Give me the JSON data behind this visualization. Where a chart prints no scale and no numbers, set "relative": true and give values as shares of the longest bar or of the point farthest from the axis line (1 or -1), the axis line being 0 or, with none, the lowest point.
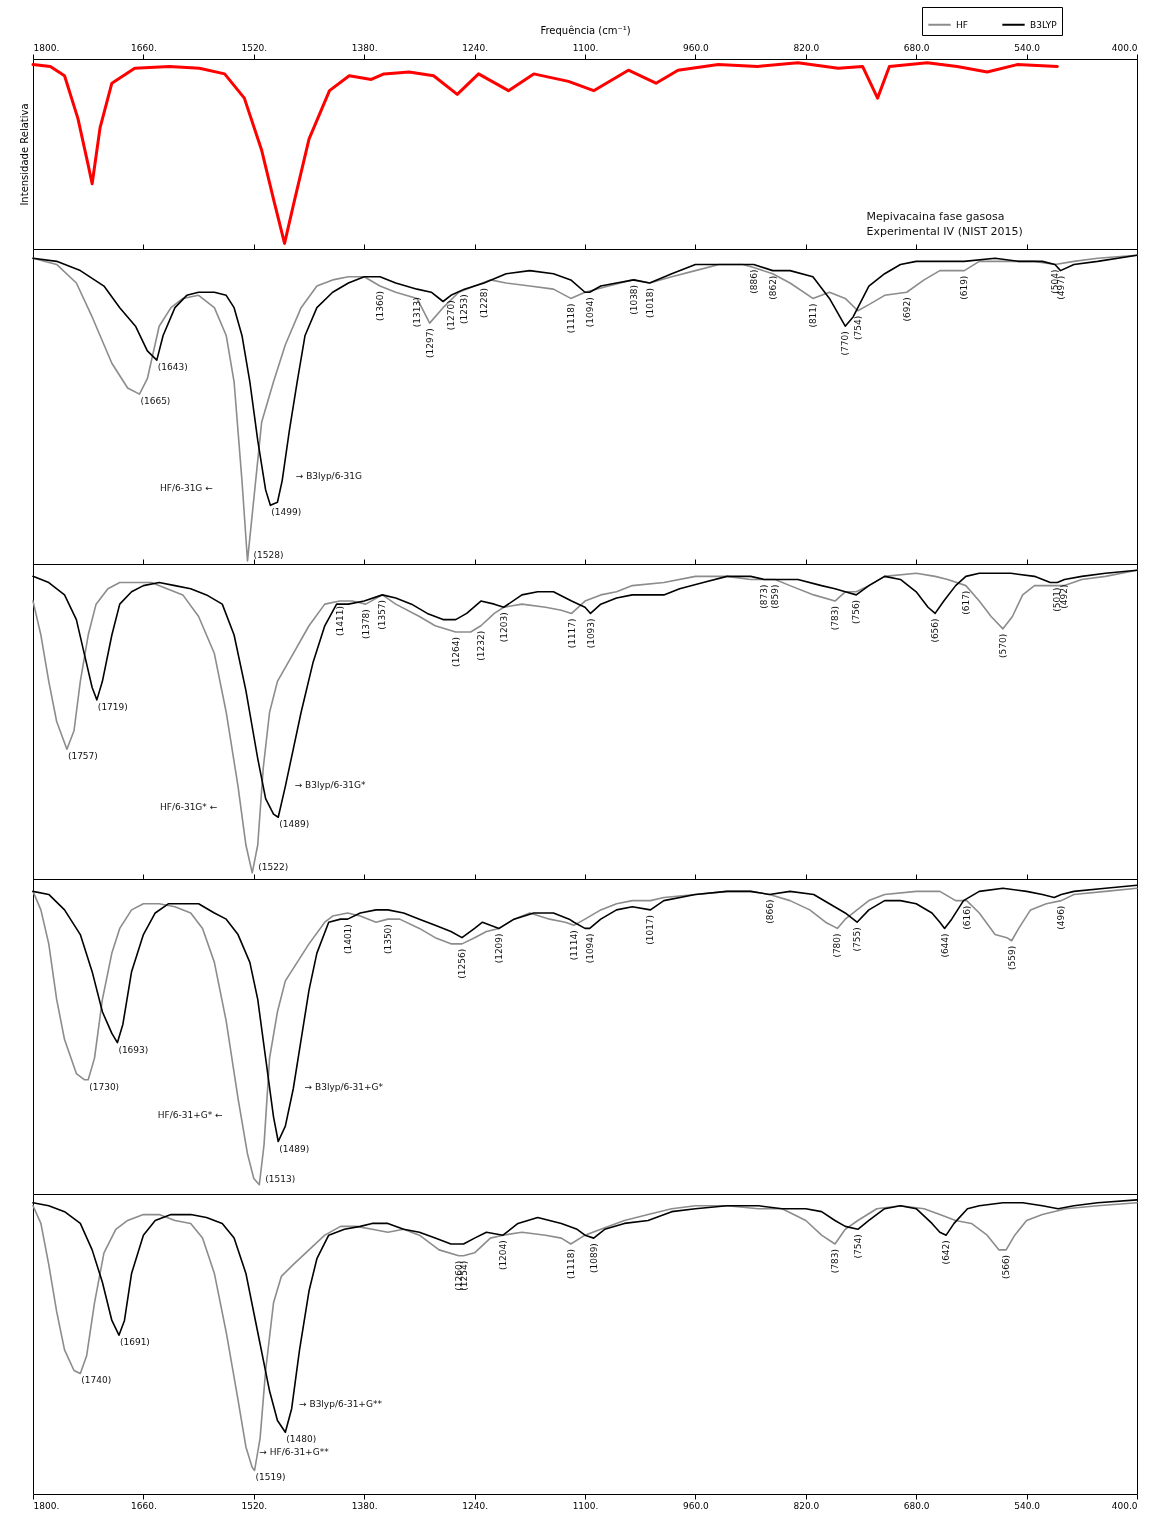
{
  "chart_data": [
    {
      "type": "line",
      "xlabel": "Frequência (cm⁻¹)",
      "ylabel": "Intensidade Relativa",
      "xlim": [
        1800,
        400
      ],
      "xticks": [
        {
          "value": 1800,
          "label": "1800."
        },
        {
          "value": 1660,
          "label": "1660."
        },
        {
          "value": 1520,
          "label": "1520."
        },
        {
          "value": 1380,
          "label": "1380."
        },
        {
          "value": 1240,
          "label": "1240."
        },
        {
          "value": 1100,
          "label": "1100."
        },
        {
          "value": 960,
          "label": "960.0"
        },
        {
          "value": 820,
          "label": "820.0"
        },
        {
          "value": 680,
          "label": "680.0"
        },
        {
          "value": 540,
          "label": "540.0"
        },
        {
          "value": 400,
          "label": "400.0"
        }
      ],
      "relative": true,
      "tick_labels": "x",
      "series": [
        {
          "color": "#ff0000",
          "x": [
            1800,
            1778,
            1760,
            1743,
            1730,
            1725,
            1715,
            1700,
            1671,
            1627,
            1589,
            1557,
            1532,
            1510,
            1494,
            1481,
            1469,
            1450,
            1424,
            1399,
            1371,
            1355,
            1323,
            1292,
            1262,
            1235,
            1197,
            1165,
            1121,
            1089,
            1045,
            1010,
            982,
            931,
            881,
            830,
            779,
            748,
            729,
            714,
            666,
            628,
            590,
            552,
            501
          ],
          "values": [
            0.99,
            0.98,
            0.93,
            0.7,
            0.45,
            0.35,
            0.65,
            0.89,
            0.97,
            0.98,
            0.97,
            0.94,
            0.81,
            0.53,
            0.25,
            0.03,
            0.25,
            0.59,
            0.85,
            0.93,
            0.91,
            0.94,
            0.95,
            0.93,
            0.83,
            0.94,
            0.85,
            0.94,
            0.9,
            0.85,
            0.96,
            0.89,
            0.96,
            0.99,
            0.98,
            1.0,
            0.97,
            0.98,
            0.81,
            0.98,
            1.0,
            0.98,
            0.95,
            0.99,
            0.98
          ]
        }
      ],
      "annotations": [
        "Mepivacaina fase gasosa\nExperimental IV (NIST 2015)"
      ]
    },
    {
      "type": "line",
      "xlim": [
        1800,
        400
      ],
      "xticks": [
        1800,
        1660,
        1520,
        1380,
        1240,
        1100,
        960,
        820,
        680,
        540,
        400
      ],
      "relative": true,
      "tick_labels": false,
      "legend": "top right",
      "series": [
        {
          "name": "HF",
          "color": "#8c8c8c",
          "x": [
            1800,
            1770,
            1745,
            1725,
            1700,
            1680,
            1665,
            1655,
            1640,
            1625,
            1610,
            1590,
            1570,
            1555,
            1545,
            1535,
            1528,
            1520,
            1510,
            1495,
            1480,
            1460,
            1440,
            1420,
            1400,
            1380,
            1360,
            1340,
            1313,
            1297,
            1280,
            1260,
            1240,
            1220,
            1200,
            1170,
            1140,
            1118,
            1100,
            1070,
            1040,
            1018,
            990,
            960,
            930,
            900,
            886,
            862,
            840,
            811,
            790,
            770,
            754,
            740,
            720,
            692,
            670,
            650,
            619,
            600,
            560,
            530,
            504,
            480,
            450,
            400
          ],
          "values": [
            0.99,
            0.97,
            0.91,
            0.8,
            0.65,
            0.57,
            0.55,
            0.6,
            0.77,
            0.83,
            0.86,
            0.87,
            0.83,
            0.74,
            0.59,
            0.27,
            0.01,
            0.21,
            0.46,
            0.59,
            0.71,
            0.83,
            0.9,
            0.92,
            0.93,
            0.93,
            0.9,
            0.88,
            0.86,
            0.78,
            0.83,
            0.88,
            0.9,
            0.92,
            0.91,
            0.9,
            0.89,
            0.86,
            0.88,
            0.9,
            0.92,
            0.91,
            0.93,
            0.95,
            0.97,
            0.97,
            0.96,
            0.94,
            0.91,
            0.86,
            0.88,
            0.86,
            0.82,
            0.84,
            0.87,
            0.88,
            0.92,
            0.95,
            0.95,
            0.98,
            0.98,
            0.98,
            0.97,
            0.98,
            0.99,
            1.0
          ]
        },
        {
          "name": "B3LYP",
          "color": "#000000",
          "x": [
            1800,
            1770,
            1740,
            1710,
            1690,
            1670,
            1655,
            1643,
            1635,
            1620,
            1605,
            1590,
            1570,
            1555,
            1545,
            1535,
            1525,
            1515,
            1505,
            1499,
            1490,
            1484,
            1475,
            1465,
            1455,
            1440,
            1420,
            1400,
            1380,
            1360,
            1340,
            1313,
            1295,
            1280,
            1270,
            1253,
            1228,
            1200,
            1170,
            1140,
            1118,
            1100,
            1094,
            1080,
            1060,
            1038,
            1018,
            990,
            960,
            920,
            886,
            862,
            840,
            811,
            790,
            770,
            760,
            740,
            720,
            700,
            680,
            650,
            619,
            580,
            550,
            520,
            504,
            497,
            480,
            450,
            400
          ],
          "values": [
            0.99,
            0.98,
            0.95,
            0.9,
            0.83,
            0.77,
            0.69,
            0.66,
            0.74,
            0.83,
            0.87,
            0.88,
            0.88,
            0.87,
            0.83,
            0.74,
            0.59,
            0.4,
            0.24,
            0.19,
            0.2,
            0.27,
            0.43,
            0.59,
            0.74,
            0.83,
            0.88,
            0.91,
            0.93,
            0.93,
            0.91,
            0.89,
            0.88,
            0.85,
            0.87,
            0.89,
            0.91,
            0.94,
            0.95,
            0.94,
            0.92,
            0.88,
            0.88,
            0.9,
            0.91,
            0.92,
            0.91,
            0.94,
            0.97,
            0.97,
            0.97,
            0.95,
            0.95,
            0.93,
            0.86,
            0.77,
            0.8,
            0.9,
            0.94,
            0.97,
            0.98,
            0.98,
            0.98,
            0.99,
            0.98,
            0.98,
            0.97,
            0.95,
            0.97,
            0.98,
            1.0
          ]
        }
      ],
      "annotations": [
        {
          "text": "(1643)",
          "x": 1643,
          "y": 0.66
        },
        {
          "text": "(1665)",
          "x": 1665,
          "y": 0.55
        },
        {
          "text": "(1499)",
          "x": 1499,
          "y": 0.19
        },
        {
          "text": "(1528)",
          "x": 1528,
          "y": 0.01
        },
        {
          "text": "(1360)",
          "x": 1360,
          "y": 0.9
        },
        {
          "text": "(1313)",
          "x": 1313,
          "y": 0.88
        },
        {
          "text": "(1297)",
          "x": 1297,
          "y": 0.78
        },
        {
          "text": "(1270)",
          "x": 1270,
          "y": 0.87
        },
        {
          "text": "(1253)",
          "x": 1253,
          "y": 0.89
        },
        {
          "text": "(1228)",
          "x": 1228,
          "y": 0.91
        },
        {
          "text": "(1118)",
          "x": 1118,
          "y": 0.86
        },
        {
          "text": "(1094)",
          "x": 1094,
          "y": 0.88
        },
        {
          "text": "(1038)",
          "x": 1038,
          "y": 0.92
        },
        {
          "text": "(1018)",
          "x": 1018,
          "y": 0.91
        },
        {
          "text": "(886)",
          "x": 886,
          "y": 0.97
        },
        {
          "text": "(862)",
          "x": 862,
          "y": 0.95
        },
        {
          "text": "(811)",
          "x": 811,
          "y": 0.86
        },
        {
          "text": "(770)",
          "x": 770,
          "y": 0.77
        },
        {
          "text": "(754)",
          "x": 754,
          "y": 0.82
        },
        {
          "text": "(692)",
          "x": 692,
          "y": 0.88
        },
        {
          "text": "(619)",
          "x": 619,
          "y": 0.95
        },
        {
          "text": "(504)",
          "x": 504,
          "y": 0.97
        },
        {
          "text": "(497)",
          "x": 497,
          "y": 0.95
        },
        "HF/6-31G ←",
        "→ B3lyp/6-31G"
      ]
    },
    {
      "type": "line",
      "xlim": [
        1800,
        400
      ],
      "xticks": [
        1800,
        1660,
        1520,
        1380,
        1240,
        1100,
        960,
        820,
        680,
        540,
        400
      ],
      "relative": true,
      "tick_labels": false,
      "series": [
        {
          "color": "#8c8c8c",
          "x": [
            1800,
            1790,
            1780,
            1770,
            1757,
            1748,
            1740,
            1730,
            1720,
            1705,
            1690,
            1670,
            1650,
            1630,
            1610,
            1590,
            1570,
            1555,
            1540,
            1530,
            1522,
            1515,
            1508,
            1500,
            1490,
            1470,
            1450,
            1430,
            1411,
            1395,
            1378,
            1357,
            1340,
            1310,
            1290,
            1264,
            1245,
            1232,
            1215,
            1203,
            1180,
            1150,
            1130,
            1117,
            1100,
            1080,
            1060,
            1040,
            1000,
            960,
            920,
            890,
            873,
            859,
            840,
            810,
            783,
            770,
            756,
            740,
            720,
            680,
            656,
            640,
            617,
            600,
            585,
            570,
            558,
            545,
            530,
            510,
            492,
            470,
            440,
            400
          ],
          "values": [
            0.9,
            0.79,
            0.64,
            0.51,
            0.42,
            0.48,
            0.64,
            0.79,
            0.89,
            0.94,
            0.96,
            0.96,
            0.96,
            0.94,
            0.92,
            0.85,
            0.73,
            0.54,
            0.3,
            0.11,
            0.02,
            0.11,
            0.36,
            0.54,
            0.64,
            0.73,
            0.82,
            0.89,
            0.9,
            0.9,
            0.89,
            0.92,
            0.89,
            0.85,
            0.82,
            0.8,
            0.8,
            0.82,
            0.86,
            0.88,
            0.89,
            0.88,
            0.87,
            0.86,
            0.9,
            0.92,
            0.93,
            0.95,
            0.96,
            0.98,
            0.98,
            0.97,
            0.97,
            0.97,
            0.95,
            0.92,
            0.9,
            0.93,
            0.93,
            0.95,
            0.98,
            0.99,
            0.98,
            0.97,
            0.95,
            0.9,
            0.85,
            0.81,
            0.85,
            0.92,
            0.95,
            0.95,
            0.95,
            0.97,
            0.98,
            1.0
          ]
        },
        {
          "color": "#000000",
          "x": [
            1800,
            1780,
            1760,
            1745,
            1735,
            1725,
            1719,
            1712,
            1700,
            1690,
            1675,
            1660,
            1640,
            1620,
            1600,
            1580,
            1560,
            1545,
            1530,
            1515,
            1505,
            1495,
            1489,
            1480,
            1470,
            1460,
            1445,
            1430,
            1415,
            1400,
            1380,
            1357,
            1340,
            1320,
            1300,
            1280,
            1264,
            1250,
            1232,
            1215,
            1203,
            1180,
            1160,
            1140,
            1117,
            1100,
            1093,
            1080,
            1060,
            1040,
            1000,
            980,
            950,
            920,
            890,
            873,
            859,
            830,
            800,
            783,
            770,
            756,
            740,
            720,
            700,
            680,
            665,
            656,
            645,
            630,
            617,
            600,
            560,
            530,
            510,
            501,
            492,
            470,
            440,
            400
          ],
          "values": [
            0.98,
            0.96,
            0.92,
            0.84,
            0.73,
            0.62,
            0.58,
            0.64,
            0.79,
            0.89,
            0.93,
            0.95,
            0.96,
            0.95,
            0.94,
            0.92,
            0.89,
            0.79,
            0.61,
            0.39,
            0.26,
            0.21,
            0.2,
            0.3,
            0.42,
            0.54,
            0.7,
            0.82,
            0.89,
            0.89,
            0.9,
            0.92,
            0.91,
            0.89,
            0.86,
            0.84,
            0.84,
            0.86,
            0.9,
            0.89,
            0.88,
            0.92,
            0.93,
            0.93,
            0.9,
            0.88,
            0.86,
            0.89,
            0.91,
            0.92,
            0.92,
            0.94,
            0.96,
            0.98,
            0.98,
            0.97,
            0.97,
            0.97,
            0.95,
            0.94,
            0.93,
            0.92,
            0.95,
            0.98,
            0.97,
            0.93,
            0.88,
            0.86,
            0.9,
            0.95,
            0.98,
            0.99,
            0.99,
            0.98,
            0.96,
            0.96,
            0.97,
            0.98,
            0.99,
            1.0
          ]
        }
      ],
      "annotations": [
        {
          "text": "(1719)",
          "x": 1719,
          "y": 0.58
        },
        {
          "text": "(1757)",
          "x": 1757,
          "y": 0.42
        },
        {
          "text": "(1489)",
          "x": 1489,
          "y": 0.2
        },
        {
          "text": "(1522)",
          "x": 1522,
          "y": 0.02
        },
        {
          "text": "(1411)",
          "x": 1411,
          "y": 0.9
        },
        {
          "text": "(1378)",
          "x": 1378,
          "y": 0.89
        },
        {
          "text": "(1357)",
          "x": 1357,
          "y": 0.92
        },
        {
          "text": "(1264)",
          "x": 1264,
          "y": 0.8
        },
        {
          "text": "(1232)",
          "x": 1232,
          "y": 0.82
        },
        {
          "text": "(1203)",
          "x": 1203,
          "y": 0.88
        },
        {
          "text": "(1117)",
          "x": 1117,
          "y": 0.86
        },
        {
          "text": "(1093)",
          "x": 1093,
          "y": 0.86
        },
        {
          "text": "(873)",
          "x": 873,
          "y": 0.97
        },
        {
          "text": "(859)",
          "x": 859,
          "y": 0.97
        },
        {
          "text": "(783)",
          "x": 783,
          "y": 0.9
        },
        {
          "text": "(756)",
          "x": 756,
          "y": 0.92
        },
        {
          "text": "(656)",
          "x": 656,
          "y": 0.86
        },
        {
          "text": "(617)",
          "x": 617,
          "y": 0.95
        },
        {
          "text": "(570)",
          "x": 570,
          "y": 0.81
        },
        {
          "text": "(501)",
          "x": 501,
          "y": 0.96
        },
        {
          "text": "(492)",
          "x": 492,
          "y": 0.97
        },
        "HF/6-31G* ←",
        "→ B3lyp/6-31G*"
      ]
    },
    {
      "type": "line",
      "xlim": [
        1800,
        400
      ],
      "xticks": [
        1800,
        1660,
        1520,
        1380,
        1240,
        1100,
        960,
        820,
        680,
        540,
        400
      ],
      "relative": true,
      "tick_labels": false,
      "series": [
        {
          "color": "#8c8c8c",
          "x": [
            1800,
            1790,
            1780,
            1770,
            1760,
            1745,
            1735,
            1730,
            1722,
            1712,
            1700,
            1690,
            1675,
            1660,
            1640,
            1620,
            1600,
            1585,
            1570,
            1555,
            1540,
            1528,
            1520,
            1513,
            1507,
            1500,
            1490,
            1480,
            1465,
            1450,
            1430,
            1420,
            1401,
            1385,
            1365,
            1350,
            1335,
            1310,
            1290,
            1270,
            1256,
            1240,
            1225,
            1209,
            1190,
            1170,
            1145,
            1125,
            1114,
            1100,
            1080,
            1060,
            1040,
            1017,
            1000,
            960,
            920,
            890,
            866,
            840,
            815,
            795,
            780,
            770,
            755,
            740,
            720,
            680,
            650,
            630,
            616,
            600,
            580,
            565,
            559,
            550,
            535,
            515,
            496,
            480,
            440,
            400
          ],
          "values": [
            0.98,
            0.92,
            0.81,
            0.63,
            0.5,
            0.39,
            0.37,
            0.37,
            0.44,
            0.63,
            0.78,
            0.86,
            0.92,
            0.94,
            0.94,
            0.93,
            0.91,
            0.86,
            0.75,
            0.56,
            0.31,
            0.13,
            0.05,
            0.03,
            0.16,
            0.44,
            0.59,
            0.69,
            0.75,
            0.81,
            0.88,
            0.9,
            0.91,
            0.9,
            0.88,
            0.89,
            0.89,
            0.86,
            0.83,
            0.81,
            0.81,
            0.83,
            0.85,
            0.86,
            0.89,
            0.91,
            0.89,
            0.88,
            0.87,
            0.89,
            0.92,
            0.94,
            0.95,
            0.95,
            0.96,
            0.97,
            0.98,
            0.98,
            0.97,
            0.95,
            0.92,
            0.88,
            0.86,
            0.89,
            0.92,
            0.95,
            0.97,
            0.98,
            0.98,
            0.95,
            0.95,
            0.91,
            0.84,
            0.83,
            0.82,
            0.86,
            0.92,
            0.94,
            0.95,
            0.97,
            0.98,
            0.99
          ]
        },
        {
          "color": "#000000",
          "x": [
            1800,
            1780,
            1760,
            1740,
            1725,
            1712,
            1700,
            1693,
            1686,
            1675,
            1660,
            1645,
            1628,
            1610,
            1590,
            1570,
            1555,
            1540,
            1525,
            1515,
            1505,
            1495,
            1489,
            1480,
            1470,
            1460,
            1450,
            1440,
            1425,
            1410,
            1401,
            1385,
            1365,
            1350,
            1330,
            1310,
            1290,
            1270,
            1256,
            1240,
            1230,
            1220,
            1209,
            1190,
            1165,
            1140,
            1120,
            1114,
            1100,
            1094,
            1080,
            1060,
            1040,
            1017,
            1000,
            960,
            920,
            890,
            866,
            840,
            810,
            790,
            770,
            755,
            740,
            720,
            700,
            680,
            660,
            650,
            644,
            635,
            620,
            600,
            570,
            540,
            520,
            505,
            496,
            480,
            440,
            400
          ],
          "values": [
            0.98,
            0.97,
            0.92,
            0.84,
            0.72,
            0.59,
            0.52,
            0.49,
            0.55,
            0.72,
            0.84,
            0.91,
            0.94,
            0.94,
            0.94,
            0.91,
            0.89,
            0.84,
            0.75,
            0.63,
            0.44,
            0.25,
            0.17,
            0.22,
            0.34,
            0.5,
            0.66,
            0.78,
            0.88,
            0.89,
            0.89,
            0.91,
            0.92,
            0.92,
            0.91,
            0.89,
            0.87,
            0.85,
            0.83,
            0.86,
            0.88,
            0.87,
            0.86,
            0.89,
            0.91,
            0.91,
            0.89,
            0.88,
            0.86,
            0.86,
            0.89,
            0.92,
            0.93,
            0.92,
            0.95,
            0.97,
            0.98,
            0.98,
            0.97,
            0.98,
            0.97,
            0.94,
            0.91,
            0.88,
            0.92,
            0.95,
            0.95,
            0.94,
            0.91,
            0.88,
            0.86,
            0.89,
            0.95,
            0.98,
            0.99,
            0.98,
            0.97,
            0.96,
            0.97,
            0.98,
            0.99,
            1.0
          ]
        }
      ],
      "annotations": [
        {
          "text": "(1693)",
          "x": 1693,
          "y": 0.49
        },
        {
          "text": "(1730)",
          "x": 1730,
          "y": 0.37
        },
        {
          "text": "(1489)",
          "x": 1489,
          "y": 0.17
        },
        {
          "text": "(1513)",
          "x": 1513,
          "y": 0.03
        },
        {
          "text": "(1401)",
          "x": 1401,
          "y": 0.89
        },
        {
          "text": "(1350)",
          "x": 1350,
          "y": 0.89
        },
        {
          "text": "(1256)",
          "x": 1256,
          "y": 0.81
        },
        {
          "text": "(1209)",
          "x": 1209,
          "y": 0.86
        },
        {
          "text": "(1114)",
          "x": 1114,
          "y": 0.87
        },
        {
          "text": "(1094)",
          "x": 1094,
          "y": 0.86
        },
        {
          "text": "(1017)",
          "x": 1017,
          "y": 0.92
        },
        {
          "text": "(866)",
          "x": 866,
          "y": 0.97
        },
        {
          "text": "(780)",
          "x": 780,
          "y": 0.86
        },
        {
          "text": "(755)",
          "x": 755,
          "y": 0.88
        },
        {
          "text": "(644)",
          "x": 644,
          "y": 0.86
        },
        {
          "text": "(616)",
          "x": 616,
          "y": 0.95
        },
        {
          "text": "(559)",
          "x": 559,
          "y": 0.82
        },
        {
          "text": "(496)",
          "x": 496,
          "y": 0.95
        },
        "HF/6-31+G* ←",
        "→ B3lyp/6-31+G*"
      ]
    },
    {
      "type": "line",
      "xlim": [
        1800,
        400
      ],
      "xticks": [
        {
          "value": 1800,
          "label": "1800."
        },
        {
          "value": 1660,
          "label": "1660."
        },
        {
          "value": 1520,
          "label": "1520."
        },
        {
          "value": 1380,
          "label": "1380."
        },
        {
          "value": 1240,
          "label": "1240."
        },
        {
          "value": 1100,
          "label": "1100."
        },
        {
          "value": 960,
          "label": "960.0"
        },
        {
          "value": 820,
          "label": "820.0"
        },
        {
          "value": 680,
          "label": "680.0"
        },
        {
          "value": 540,
          "label": "540.0"
        },
        {
          "value": 400,
          "label": "400.0"
        }
      ],
      "relative": true,
      "tick_labels": "x",
      "series": [
        {
          "color": "#8c8c8c",
          "x": [
            1800,
            1790,
            1780,
            1770,
            1760,
            1748,
            1740,
            1732,
            1722,
            1710,
            1695,
            1680,
            1660,
            1640,
            1620,
            1600,
            1585,
            1570,
            1555,
            1540,
            1530,
            1522,
            1519,
            1512,
            1505,
            1495,
            1485,
            1470,
            1450,
            1430,
            1410,
            1390,
            1370,
            1350,
            1330,
            1310,
            1285,
            1260,
            1254,
            1240,
            1220,
            1204,
            1180,
            1150,
            1130,
            1118,
            1100,
            1080,
            1050,
            1020,
            990,
            960,
            920,
            880,
            850,
            820,
            800,
            783,
            770,
            754,
            730,
            700,
            670,
            650,
            630,
            610,
            590,
            575,
            566,
            555,
            540,
            520,
            490,
            450,
            400
          ],
          "values": [
            0.98,
            0.92,
            0.78,
            0.62,
            0.49,
            0.42,
            0.41,
            0.47,
            0.65,
            0.82,
            0.9,
            0.93,
            0.95,
            0.95,
            0.93,
            0.92,
            0.87,
            0.75,
            0.55,
            0.32,
            0.16,
            0.09,
            0.08,
            0.19,
            0.42,
            0.65,
            0.74,
            0.78,
            0.83,
            0.88,
            0.91,
            0.91,
            0.9,
            0.89,
            0.9,
            0.88,
            0.83,
            0.81,
            0.81,
            0.82,
            0.87,
            0.88,
            0.89,
            0.88,
            0.87,
            0.85,
            0.88,
            0.9,
            0.93,
            0.95,
            0.97,
            0.98,
            0.98,
            0.97,
            0.97,
            0.93,
            0.88,
            0.85,
            0.9,
            0.93,
            0.97,
            0.98,
            0.97,
            0.95,
            0.93,
            0.92,
            0.88,
            0.83,
            0.83,
            0.88,
            0.93,
            0.95,
            0.97,
            0.98,
            0.99
          ]
        },
        {
          "color": "#000000",
          "x": [
            1800,
            1780,
            1760,
            1740,
            1725,
            1712,
            1700,
            1691,
            1684,
            1675,
            1660,
            1645,
            1625,
            1600,
            1580,
            1560,
            1545,
            1530,
            1515,
            1500,
            1490,
            1480,
            1472,
            1462,
            1450,
            1440,
            1425,
            1405,
            1385,
            1370,
            1350,
            1330,
            1310,
            1290,
            1270,
            1254,
            1240,
            1225,
            1204,
            1185,
            1160,
            1130,
            1110,
            1100,
            1089,
            1075,
            1050,
            1020,
            990,
            960,
            920,
            880,
            850,
            820,
            800,
            783,
            770,
            754,
            740,
            720,
            700,
            680,
            660,
            650,
            642,
            632,
            615,
            600,
            570,
            545,
            520,
            500,
            480,
            450,
            400
          ],
          "values": [
            0.99,
            0.98,
            0.96,
            0.92,
            0.83,
            0.72,
            0.59,
            0.54,
            0.59,
            0.75,
            0.88,
            0.93,
            0.95,
            0.95,
            0.94,
            0.92,
            0.87,
            0.75,
            0.55,
            0.35,
            0.25,
            0.21,
            0.29,
            0.49,
            0.69,
            0.8,
            0.88,
            0.9,
            0.91,
            0.92,
            0.92,
            0.9,
            0.89,
            0.87,
            0.85,
            0.85,
            0.87,
            0.89,
            0.88,
            0.92,
            0.94,
            0.92,
            0.9,
            0.88,
            0.87,
            0.9,
            0.92,
            0.93,
            0.96,
            0.97,
            0.98,
            0.98,
            0.97,
            0.97,
            0.96,
            0.93,
            0.91,
            0.9,
            0.93,
            0.97,
            0.98,
            0.97,
            0.92,
            0.89,
            0.88,
            0.92,
            0.97,
            0.98,
            0.99,
            0.99,
            0.98,
            0.97,
            0.98,
            0.99,
            1.0
          ]
        }
      ],
      "annotations": [
        {
          "text": "(1691)",
          "x": 1691,
          "y": 0.54
        },
        {
          "text": "(1740)",
          "x": 1740,
          "y": 0.41
        },
        {
          "text": "(1480)",
          "x": 1480,
          "y": 0.21
        },
        {
          "text": "(1519)",
          "x": 1519,
          "y": 0.08
        },
        {
          "text": "(1260)",
          "x": 1260,
          "y": 0.81
        },
        {
          "text": "(1254)",
          "x": 1254,
          "y": 0.81
        },
        {
          "text": "(1204)",
          "x": 1204,
          "y": 0.88
        },
        {
          "text": "(1118)",
          "x": 1118,
          "y": 0.85
        },
        {
          "text": "(1089)",
          "x": 1089,
          "y": 0.87
        },
        {
          "text": "(783)",
          "x": 783,
          "y": 0.85
        },
        {
          "text": "(754)",
          "x": 754,
          "y": 0.9
        },
        {
          "text": "(642)",
          "x": 642,
          "y": 0.88
        },
        {
          "text": "(566)",
          "x": 566,
          "y": 0.83
        },
        "→ B3lyp/6-31+G**",
        "→ HF/6-31+G**"
      ]
    }
  ]
}
